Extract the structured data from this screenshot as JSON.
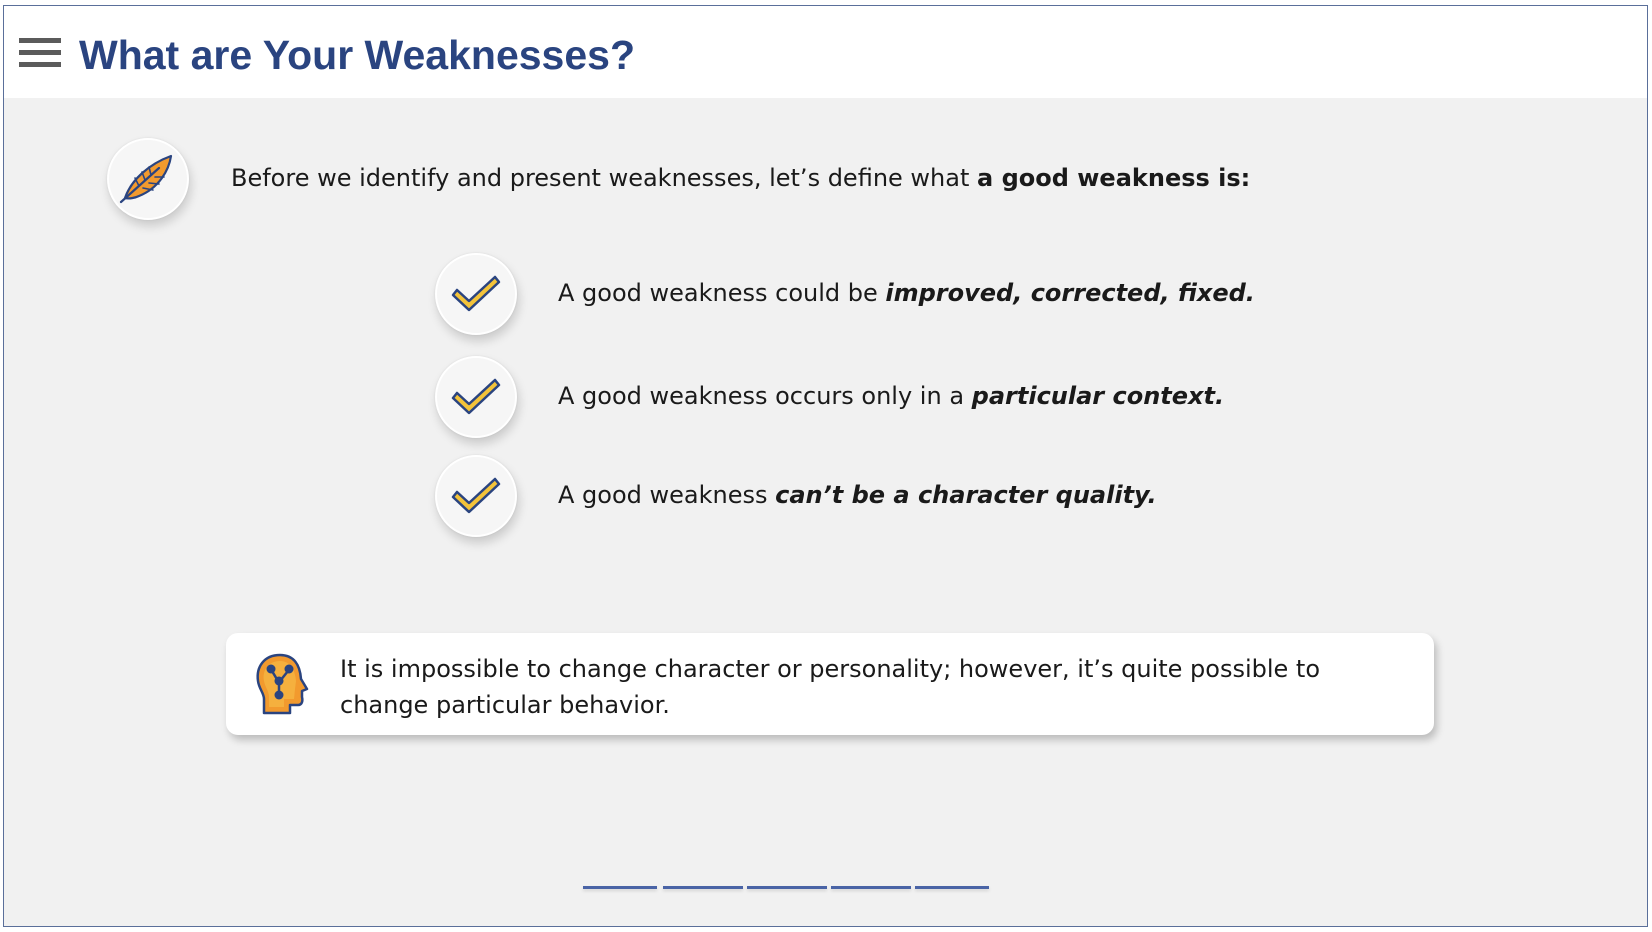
{
  "header": {
    "title": "What are Your Weaknesses?",
    "menu_icon": "hamburger-menu-icon",
    "title_color": "#2a4480"
  },
  "intro": {
    "icon": "feather-icon",
    "text_plain": "Before we identify and present weaknesses, let’s define what ",
    "text_bold": "a good weakness is:"
  },
  "checklist": [
    {
      "icon": "checkmark-icon",
      "plain": "A good weakness could be ",
      "emphasis": "improved, corrected, fixed."
    },
    {
      "icon": "checkmark-icon",
      "plain": "A good weakness occurs only in a ",
      "emphasis": "particular context."
    },
    {
      "icon": "checkmark-icon",
      "plain": "A good weakness ",
      "emphasis": "can’t be a character quality."
    }
  ],
  "note": {
    "icon": "head-network-icon",
    "text": "It is impossible to change character or personality; however, it’s quite possible to change particular behavior."
  },
  "progress": {
    "segments": 5,
    "color": "#4a64a6"
  },
  "colors": {
    "accent_blue": "#2a4480",
    "check_yellow": "#f3c33a",
    "feather_orange": "#f29a2e",
    "background": "#f1f1f1"
  }
}
